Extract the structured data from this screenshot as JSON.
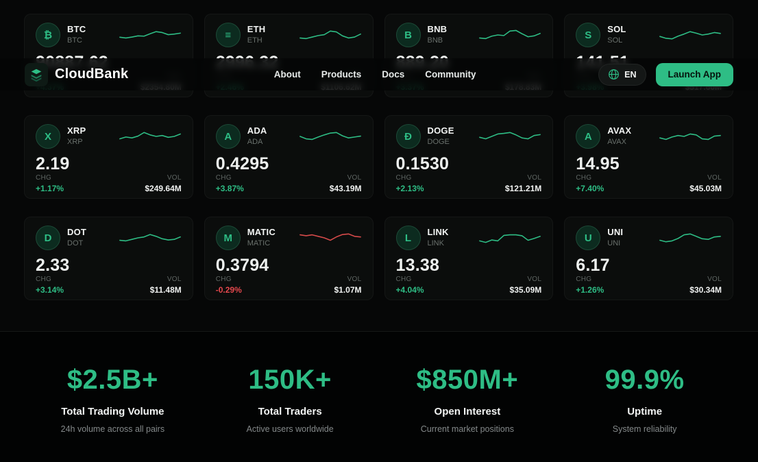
{
  "brand": {
    "name": "CloudBank"
  },
  "nav": {
    "links": [
      {
        "label": "About"
      },
      {
        "label": "Products"
      },
      {
        "label": "Docs"
      },
      {
        "label": "Community"
      }
    ],
    "language": "EN",
    "launch_label": "Launch App"
  },
  "labels": {
    "chg": "CHG",
    "vol": "VOL"
  },
  "colors": {
    "accent": "#2ebd85",
    "negative": "#e5484d"
  },
  "cards": [
    {
      "symbol": "BTC",
      "name": "BTC",
      "icon": "₿",
      "price": "90887.62",
      "chg": "+4.37%",
      "chg_color": "#2ebd85",
      "vol": "$2354.80M",
      "spark_color": "#2ebd85",
      "spark": [
        0.35,
        0.3,
        0.36,
        0.44,
        0.42,
        0.58,
        0.72,
        0.66,
        0.52,
        0.56,
        0.62
      ]
    },
    {
      "symbol": "ETH",
      "name": "ETH",
      "icon": "≡",
      "price": "2996.32",
      "chg": "+2.46%",
      "chg_color": "#2ebd85",
      "vol": "$1106.62M",
      "spark_color": "#2ebd85",
      "spark": [
        0.3,
        0.26,
        0.36,
        0.46,
        0.52,
        0.76,
        0.7,
        0.44,
        0.3,
        0.36,
        0.56
      ]
    },
    {
      "symbol": "BNB",
      "name": "BNB",
      "icon": "B",
      "price": "889.20",
      "chg": "+3.37%",
      "chg_color": "#2ebd85",
      "vol": "$178.83M",
      "spark_color": "#2ebd85",
      "spark": [
        0.3,
        0.26,
        0.42,
        0.5,
        0.46,
        0.76,
        0.8,
        0.58,
        0.38,
        0.44,
        0.6
      ]
    },
    {
      "symbol": "SOL",
      "name": "SOL",
      "icon": "S",
      "price": "141.51",
      "chg": "+3.98%",
      "chg_color": "#2ebd85",
      "vol": "$517.60M",
      "spark_color": "#2ebd85",
      "spark": [
        0.4,
        0.28,
        0.24,
        0.42,
        0.56,
        0.72,
        0.62,
        0.5,
        0.56,
        0.66,
        0.6
      ]
    },
    {
      "symbol": "XRP",
      "name": "XRP",
      "icon": "X",
      "price": "2.19",
      "chg": "+1.17%",
      "chg_color": "#2ebd85",
      "vol": "$249.64M",
      "spark_color": "#2ebd85",
      "spark": [
        0.34,
        0.46,
        0.4,
        0.52,
        0.76,
        0.6,
        0.5,
        0.56,
        0.44,
        0.5,
        0.66
      ]
    },
    {
      "symbol": "ADA",
      "name": "ADA",
      "icon": "A",
      "price": "0.4295",
      "chg": "+3.87%",
      "chg_color": "#2ebd85",
      "vol": "$43.19M",
      "spark_color": "#2ebd85",
      "spark": [
        0.5,
        0.34,
        0.3,
        0.46,
        0.6,
        0.72,
        0.76,
        0.54,
        0.4,
        0.46,
        0.52
      ]
    },
    {
      "symbol": "DOGE",
      "name": "DOGE",
      "icon": "Đ",
      "price": "0.1530",
      "chg": "+2.13%",
      "chg_color": "#2ebd85",
      "vol": "$121.21M",
      "spark_color": "#2ebd85",
      "spark": [
        0.44,
        0.34,
        0.5,
        0.66,
        0.7,
        0.76,
        0.6,
        0.4,
        0.34,
        0.56,
        0.62
      ]
    },
    {
      "symbol": "AVAX",
      "name": "AVAX",
      "icon": "A",
      "price": "14.95",
      "chg": "+7.40%",
      "chg_color": "#2ebd85",
      "vol": "$45.03M",
      "spark_color": "#2ebd85",
      "spark": [
        0.4,
        0.3,
        0.46,
        0.56,
        0.5,
        0.66,
        0.6,
        0.34,
        0.3,
        0.52,
        0.56
      ]
    },
    {
      "symbol": "DOT",
      "name": "DOT",
      "icon": "D",
      "price": "2.33",
      "chg": "+3.14%",
      "chg_color": "#2ebd85",
      "vol": "$11.48M",
      "spark_color": "#2ebd85",
      "spark": [
        0.34,
        0.3,
        0.4,
        0.5,
        0.56,
        0.72,
        0.6,
        0.44,
        0.36,
        0.4,
        0.56
      ]
    },
    {
      "symbol": "MATIC",
      "name": "MATIC",
      "icon": "M",
      "price": "0.3794",
      "chg": "-0.29%",
      "chg_color": "#e5484d",
      "vol": "$1.07M",
      "spark_color": "#d64a4a",
      "spark": [
        0.7,
        0.64,
        0.7,
        0.6,
        0.5,
        0.34,
        0.56,
        0.72,
        0.76,
        0.6,
        0.56
      ]
    },
    {
      "symbol": "LINK",
      "name": "LINK",
      "icon": "L",
      "price": "13.38",
      "chg": "+4.04%",
      "chg_color": "#2ebd85",
      "vol": "$35.09M",
      "spark_color": "#2ebd85",
      "spark": [
        0.3,
        0.2,
        0.36,
        0.3,
        0.66,
        0.7,
        0.7,
        0.64,
        0.34,
        0.46,
        0.6
      ]
    },
    {
      "symbol": "UNI",
      "name": "UNI",
      "icon": "U",
      "price": "6.17",
      "chg": "+1.26%",
      "chg_color": "#2ebd85",
      "vol": "$30.34M",
      "spark_color": "#2ebd85",
      "spark": [
        0.34,
        0.24,
        0.3,
        0.46,
        0.7,
        0.76,
        0.6,
        0.44,
        0.4,
        0.56,
        0.6
      ]
    }
  ],
  "stats": [
    {
      "value": "$2.5B+",
      "label": "Total Trading Volume",
      "sub": "24h volume across all pairs"
    },
    {
      "value": "150K+",
      "label": "Total Traders",
      "sub": "Active users worldwide"
    },
    {
      "value": "$850M+",
      "label": "Open Interest",
      "sub": "Current market positions"
    },
    {
      "value": "99.9%",
      "label": "Uptime",
      "sub": "System reliability"
    }
  ]
}
